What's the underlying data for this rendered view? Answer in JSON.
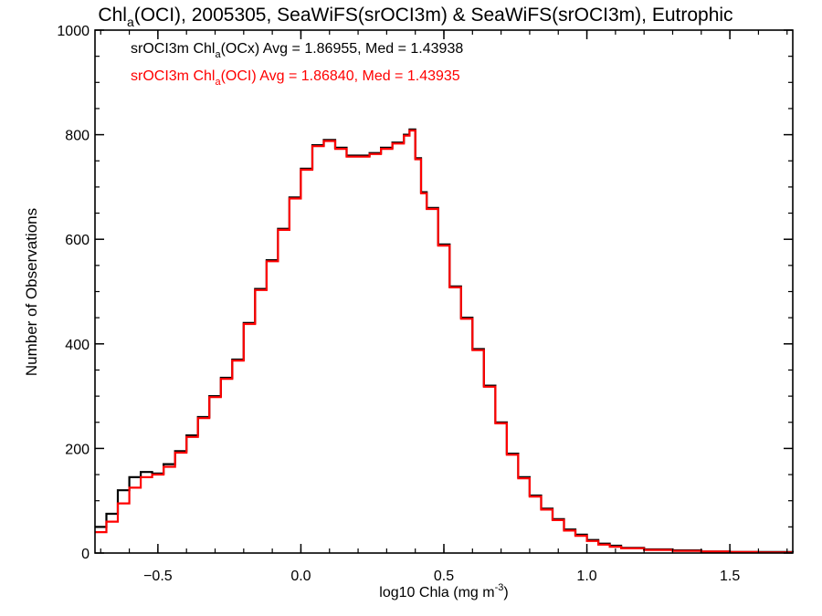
{
  "chart_data": {
    "type": "line",
    "title": {
      "prefix": "Chl",
      "sub": "a",
      "suffix": "(OCI), 2005305, SeaWiFS(srOCI3m) & SeaWiFS(srOCI3m), Eutrophic"
    },
    "xlabel": {
      "main": "log10 Chla (mg m",
      "sup": "-3",
      "end": ")"
    },
    "ylabel": "Number of Observations",
    "xlim": [
      -0.72,
      1.72
    ],
    "ylim": [
      0,
      1000
    ],
    "x_ticks": [
      {
        "value": -0.5,
        "label": "−0.5"
      },
      {
        "value": 0.0,
        "label": "0.0"
      },
      {
        "value": 0.5,
        "label": "0.5"
      },
      {
        "value": 1.0,
        "label": "1.0"
      },
      {
        "value": 1.5,
        "label": "1.5"
      }
    ],
    "y_ticks": [
      {
        "value": 0,
        "label": "0"
      },
      {
        "value": 200,
        "label": "200"
      },
      {
        "value": 400,
        "label": "400"
      },
      {
        "value": 600,
        "label": "600"
      },
      {
        "value": 800,
        "label": "800"
      },
      {
        "value": 1000,
        "label": "1000"
      }
    ],
    "grid": false,
    "legend_position": "top-left",
    "series": [
      {
        "name": "srOCI3m Chla(OCx)",
        "color": "#000000",
        "annotation": {
          "prefix": "srOCI3m Chl",
          "sub": "a",
          "suffix": "(OCx) Avg = 1.86955, Med = 1.43938"
        },
        "x": [
          -0.72,
          -0.68,
          -0.64,
          -0.6,
          -0.56,
          -0.52,
          -0.48,
          -0.44,
          -0.4,
          -0.36,
          -0.32,
          -0.28,
          -0.24,
          -0.2,
          -0.16,
          -0.12,
          -0.08,
          -0.04,
          0.0,
          0.04,
          0.08,
          0.12,
          0.16,
          0.2,
          0.24,
          0.28,
          0.32,
          0.36,
          0.38,
          0.4,
          0.42,
          0.44,
          0.48,
          0.52,
          0.56,
          0.6,
          0.64,
          0.68,
          0.72,
          0.76,
          0.8,
          0.84,
          0.88,
          0.92,
          0.96,
          1.0,
          1.04,
          1.08,
          1.12,
          1.2,
          1.3,
          1.4,
          1.5,
          1.6,
          1.72
        ],
        "values": [
          50,
          75,
          120,
          145,
          155,
          152,
          170,
          195,
          225,
          260,
          300,
          335,
          370,
          440,
          505,
          560,
          620,
          680,
          735,
          780,
          790,
          775,
          760,
          760,
          765,
          775,
          785,
          800,
          810,
          755,
          690,
          660,
          590,
          510,
          450,
          390,
          320,
          250,
          190,
          145,
          110,
          85,
          65,
          45,
          35,
          25,
          18,
          14,
          10,
          7,
          5,
          3,
          2,
          2,
          1
        ]
      },
      {
        "name": "srOCI3m Chla(OCI)",
        "color": "#ff0000",
        "annotation": {
          "prefix": "srOCI3m Chl",
          "sub": "a",
          "suffix": "(OCI) Avg = 1.86840, Med = 1.43935"
        },
        "x": [
          -0.72,
          -0.68,
          -0.64,
          -0.6,
          -0.56,
          -0.52,
          -0.48,
          -0.44,
          -0.4,
          -0.36,
          -0.32,
          -0.28,
          -0.24,
          -0.2,
          -0.16,
          -0.12,
          -0.08,
          -0.04,
          0.0,
          0.04,
          0.08,
          0.12,
          0.16,
          0.2,
          0.24,
          0.28,
          0.32,
          0.36,
          0.38,
          0.4,
          0.42,
          0.44,
          0.48,
          0.52,
          0.56,
          0.6,
          0.64,
          0.68,
          0.72,
          0.76,
          0.8,
          0.84,
          0.88,
          0.92,
          0.96,
          1.0,
          1.04,
          1.08,
          1.12,
          1.2,
          1.3,
          1.4,
          1.5,
          1.6,
          1.72
        ],
        "values": [
          40,
          60,
          95,
          125,
          145,
          150,
          165,
          192,
          222,
          258,
          298,
          333,
          368,
          438,
          503,
          558,
          618,
          678,
          733,
          778,
          788,
          773,
          758,
          758,
          763,
          773,
          783,
          798,
          808,
          753,
          688,
          658,
          588,
          508,
          448,
          388,
          318,
          248,
          188,
          143,
          108,
          83,
          63,
          43,
          33,
          23,
          16,
          12,
          9,
          6,
          4,
          3,
          2,
          1,
          1
        ]
      }
    ]
  }
}
